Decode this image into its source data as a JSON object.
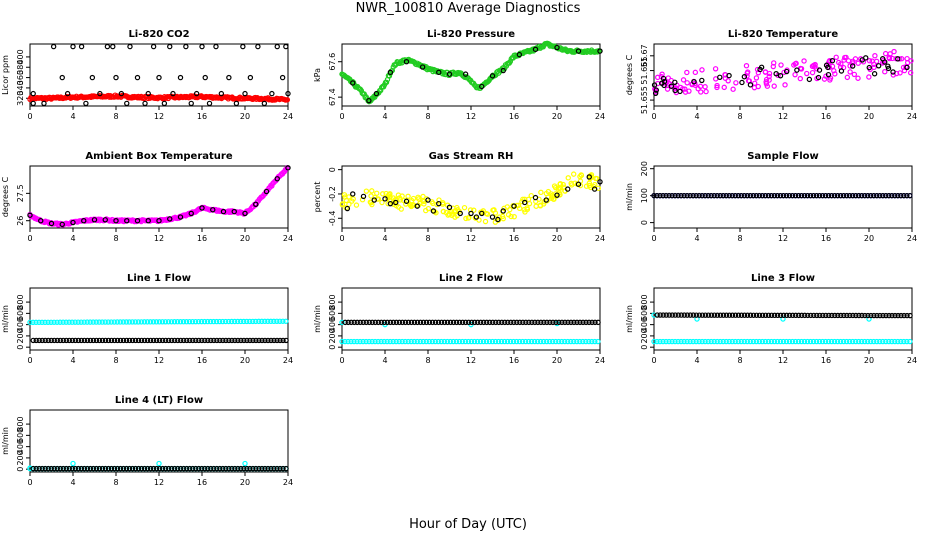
{
  "page": {
    "title": "NWR_100810  Average Diagnostics",
    "xlabel": "Hour of Day (UTC)"
  },
  "chart_data": [
    {
      "id": "co2",
      "type": "scatter",
      "title": "Li-820 CO2",
      "ylabel": "Licor ppm",
      "xlim": [
        0,
        24
      ],
      "ylim": [
        305,
        425
      ],
      "yticks": [
        320,
        340,
        360,
        380,
        400
      ],
      "xticks": [
        0,
        4,
        8,
        12,
        16,
        20,
        24
      ],
      "series": [
        {
          "color": "#ff0000",
          "kind": "band",
          "x": [
            0,
            2,
            4,
            6,
            8,
            10,
            12,
            14,
            16,
            18,
            20,
            22,
            24
          ],
          "y": [
            320,
            320,
            322,
            323,
            324,
            322,
            321,
            322,
            323,
            321,
            320,
            319,
            317
          ],
          "spread": 2
        },
        {
          "color": "#000000",
          "kind": "points",
          "x": [
            0.3,
            0.3,
            1.3,
            2.2,
            3,
            3.5,
            4,
            4.8,
            5.2,
            5.8,
            6.5,
            7.2,
            7.7,
            8,
            8.5,
            9,
            9.3,
            10,
            10.7,
            11,
            11.5,
            12,
            12.5,
            13,
            13.3,
            14,
            14.5,
            15,
            15.5,
            16,
            16.3,
            16.7,
            17.3,
            17.8,
            18.5,
            19.2,
            19.8,
            20,
            20.5,
            21.2,
            21.8,
            22.5,
            23,
            23.5,
            23.8,
            24
          ],
          "y": [
            310,
            329,
            310,
            420,
            360,
            329,
            420,
            420,
            310,
            360,
            329,
            420,
            420,
            360,
            329,
            310,
            420,
            360,
            310,
            329,
            420,
            360,
            310,
            420,
            329,
            360,
            420,
            310,
            329,
            420,
            360,
            310,
            420,
            329,
            360,
            310,
            420,
            329,
            360,
            420,
            310,
            329,
            420,
            360,
            420,
            329
          ]
        }
      ]
    },
    {
      "id": "pressure",
      "type": "scatter",
      "title": "Li-820 Pressure",
      "ylabel": "kPa",
      "xlim": [
        0,
        24
      ],
      "ylim": [
        67.35,
        67.7
      ],
      "yticks": [
        67.4,
        67.6
      ],
      "xticks": [
        0,
        4,
        8,
        12,
        16,
        20,
        24
      ],
      "series": [
        {
          "color": "#22cc22",
          "kind": "band",
          "x": [
            0,
            1,
            2,
            2.5,
            3,
            4,
            4.5,
            5,
            6,
            7,
            8,
            9,
            10,
            11,
            12,
            12.5,
            13,
            14,
            15,
            16,
            17,
            18,
            19,
            20,
            21,
            22,
            23,
            24
          ],
          "y": [
            67.53,
            67.48,
            67.42,
            67.37,
            67.4,
            67.47,
            67.54,
            67.59,
            67.61,
            67.59,
            67.56,
            67.54,
            67.53,
            67.54,
            67.49,
            67.45,
            67.46,
            67.52,
            67.56,
            67.63,
            67.65,
            67.67,
            67.7,
            67.68,
            67.66,
            67.66,
            67.66,
            67.66
          ],
          "spread": 0.008
        },
        {
          "color": "#000000",
          "kind": "points",
          "x": [
            1,
            2.5,
            3.2,
            4.5,
            6,
            7.5,
            9,
            10,
            11.5,
            13,
            14,
            15,
            16.5,
            18,
            20,
            22,
            24
          ],
          "y": [
            67.48,
            67.38,
            67.42,
            67.54,
            67.6,
            67.57,
            67.54,
            67.53,
            67.53,
            67.46,
            67.52,
            67.55,
            67.64,
            67.67,
            67.68,
            67.66,
            67.66
          ]
        }
      ]
    },
    {
      "id": "temp",
      "type": "scatter",
      "title": "Li-820 Temperature",
      "ylabel": "degrees C",
      "xlim": [
        0,
        24
      ],
      "ylim": [
        51.653,
        51.674
      ],
      "yticks": [
        51.655,
        51.665,
        51.67
      ],
      "xticks": [
        0,
        4,
        8,
        12,
        16,
        20,
        24
      ],
      "series": [
        {
          "color": "#ff00ff",
          "kind": "scatter",
          "x": [
            0,
            24
          ],
          "y": [
            51.66,
            51.668
          ],
          "spread": 0.004,
          "n": 160
        },
        {
          "color": "#000000",
          "kind": "scatter",
          "x": [
            0,
            24
          ],
          "y": [
            51.66,
            51.668
          ],
          "spread": 0.003,
          "n": 45
        }
      ]
    },
    {
      "id": "ambient",
      "type": "scatter",
      "title": "Ambient Box Temperature",
      "ylabel": "degrees C",
      "xlim": [
        0,
        24
      ],
      "ylim": [
        25.6,
        29.0
      ],
      "yticks": [
        26.0,
        27.5
      ],
      "xticks": [
        0,
        4,
        8,
        12,
        16,
        20,
        24
      ],
      "series": [
        {
          "color": "#ff00ff",
          "kind": "band",
          "x": [
            0,
            1,
            2,
            3,
            4,
            5,
            6,
            7,
            8,
            9,
            10,
            11,
            12,
            13,
            14,
            15,
            16,
            17,
            18,
            19,
            20,
            21,
            22,
            23,
            24
          ],
          "y": [
            26.3,
            26.0,
            25.85,
            25.8,
            25.9,
            26.0,
            26.05,
            26.05,
            26.0,
            26.0,
            26.0,
            26.0,
            26.0,
            26.1,
            26.2,
            26.4,
            26.7,
            26.6,
            26.5,
            26.5,
            26.4,
            26.9,
            27.6,
            28.3,
            28.9
          ],
          "spread": 0.05
        },
        {
          "color": "#000000",
          "kind": "points",
          "x": [
            0,
            1,
            2,
            3,
            4,
            5,
            6,
            7,
            8,
            9,
            10,
            11,
            12,
            13,
            14,
            15,
            16,
            17,
            18,
            19,
            20,
            21,
            22,
            23,
            24
          ],
          "y": [
            26.3,
            26.0,
            25.85,
            25.8,
            25.9,
            26.0,
            26.05,
            26.05,
            26.0,
            26.0,
            26.0,
            26.0,
            26.0,
            26.1,
            26.2,
            26.4,
            26.7,
            26.6,
            26.5,
            26.5,
            26.4,
            26.9,
            27.6,
            28.3,
            28.9
          ]
        }
      ]
    },
    {
      "id": "rh",
      "type": "scatter",
      "title": "Gas Stream RH",
      "ylabel": "percent",
      "xlim": [
        0,
        24
      ],
      "ylim": [
        -0.48,
        0.03
      ],
      "yticks": [
        -0.4,
        -0.2,
        0.0
      ],
      "xticks": [
        0,
        4,
        8,
        12,
        16,
        20,
        24
      ],
      "series": [
        {
          "color": "#ffff00",
          "kind": "scatter",
          "x": [
            0,
            2,
            4,
            6,
            8,
            10,
            12,
            14,
            16,
            18,
            20,
            22,
            24
          ],
          "y": [
            -0.27,
            -0.22,
            -0.25,
            -0.27,
            -0.28,
            -0.32,
            -0.37,
            -0.38,
            -0.33,
            -0.26,
            -0.18,
            -0.07,
            -0.12
          ],
          "spread": 0.06,
          "n": 200
        },
        {
          "color": "#000000",
          "kind": "points",
          "x": [
            0.5,
            1,
            2,
            3,
            4,
            4.5,
            5,
            6,
            7,
            8,
            8.5,
            9,
            10,
            11,
            12,
            12.5,
            13,
            14,
            14.5,
            15,
            16,
            17,
            18,
            19,
            20,
            21,
            22,
            23,
            23.5,
            24
          ],
          "y": [
            -0.32,
            -0.2,
            -0.22,
            -0.25,
            -0.24,
            -0.28,
            -0.27,
            -0.26,
            -0.3,
            -0.25,
            -0.34,
            -0.28,
            -0.31,
            -0.36,
            -0.36,
            -0.39,
            -0.36,
            -0.39,
            -0.41,
            -0.34,
            -0.3,
            -0.27,
            -0.23,
            -0.25,
            -0.21,
            -0.16,
            -0.12,
            -0.06,
            -0.16,
            -0.1
          ]
        }
      ]
    },
    {
      "id": "sample",
      "type": "scatter",
      "title": "Sample Flow",
      "ylabel": "ml/min",
      "xlim": [
        0,
        24
      ],
      "ylim": [
        -20,
        210
      ],
      "yticks": [
        0,
        100,
        200
      ],
      "xticks": [
        0,
        4,
        8,
        12,
        16,
        20,
        24
      ],
      "series": [
        {
          "color": "#0000ff",
          "kind": "flat",
          "x": [
            0,
            24
          ],
          "y": [
            100,
            100
          ]
        },
        {
          "color": "#000000",
          "kind": "flat",
          "x": [
            0,
            24
          ],
          "y": [
            100,
            100
          ]
        }
      ]
    },
    {
      "id": "line1",
      "type": "scatter",
      "title": "Line 1 Flow",
      "ylabel": "ml/min",
      "xlim": [
        0,
        24
      ],
      "ylim": [
        -50,
        1050
      ],
      "yticks": [
        0,
        200,
        400,
        600,
        800
      ],
      "xticks": [
        0,
        4,
        8,
        12,
        16,
        20,
        24
      ],
      "series": [
        {
          "color": "#00ffff",
          "kind": "flat",
          "x": [
            0,
            24
          ],
          "y": [
            440,
            460
          ]
        },
        {
          "color": "#000000",
          "kind": "flat",
          "x": [
            0.3,
            24
          ],
          "y": [
            120,
            120
          ]
        }
      ]
    },
    {
      "id": "line2",
      "type": "scatter",
      "title": "Line 2 Flow",
      "ylabel": "ml/min",
      "xlim": [
        0,
        24
      ],
      "ylim": [
        -50,
        1050
      ],
      "yticks": [
        0,
        200,
        400,
        600,
        800
      ],
      "xticks": [
        0,
        4,
        8,
        12,
        16,
        20,
        24
      ],
      "series": [
        {
          "color": "#00ffff",
          "kind": "flat",
          "x": [
            0,
            24
          ],
          "y": [
            100,
            100
          ],
          "outliers": [
            [
              0,
              440
            ],
            [
              4,
              400
            ],
            [
              12,
              400
            ],
            [
              20,
              420
            ]
          ]
        },
        {
          "color": "#000000",
          "kind": "flat",
          "x": [
            0.3,
            24
          ],
          "y": [
            440,
            440
          ]
        }
      ]
    },
    {
      "id": "line3",
      "type": "scatter",
      "title": "Line 3 Flow",
      "ylabel": "ml/min",
      "xlim": [
        0,
        24
      ],
      "ylim": [
        -50,
        1050
      ],
      "yticks": [
        0,
        200,
        400,
        600,
        800
      ],
      "xticks": [
        0,
        4,
        8,
        12,
        16,
        20,
        24
      ],
      "series": [
        {
          "color": "#00ffff",
          "kind": "flat",
          "x": [
            0,
            24
          ],
          "y": [
            100,
            100
          ],
          "outliers": [
            [
              0,
              570
            ],
            [
              4,
              500
            ],
            [
              12,
              500
            ],
            [
              20,
              500
            ]
          ]
        },
        {
          "color": "#000000",
          "kind": "flat",
          "x": [
            0.3,
            24
          ],
          "y": [
            570,
            560
          ]
        }
      ]
    },
    {
      "id": "line4",
      "type": "scatter",
      "title": "Line 4 (LT) Flow",
      "ylabel": "ml/min",
      "xlim": [
        0,
        24
      ],
      "ylim": [
        -50,
        1050
      ],
      "yticks": [
        0,
        200,
        400,
        600,
        800
      ],
      "xticks": [
        0,
        4,
        8,
        12,
        16,
        20,
        24
      ],
      "series": [
        {
          "color": "#00ffff",
          "kind": "flat",
          "x": [
            0,
            24
          ],
          "y": [
            10,
            10
          ],
          "outliers": [
            [
              0,
              20
            ],
            [
              4,
              100
            ],
            [
              12,
              100
            ],
            [
              20,
              100
            ]
          ]
        },
        {
          "color": "#000000",
          "kind": "flat",
          "x": [
            0.3,
            24
          ],
          "y": [
            10,
            10
          ]
        }
      ]
    }
  ]
}
